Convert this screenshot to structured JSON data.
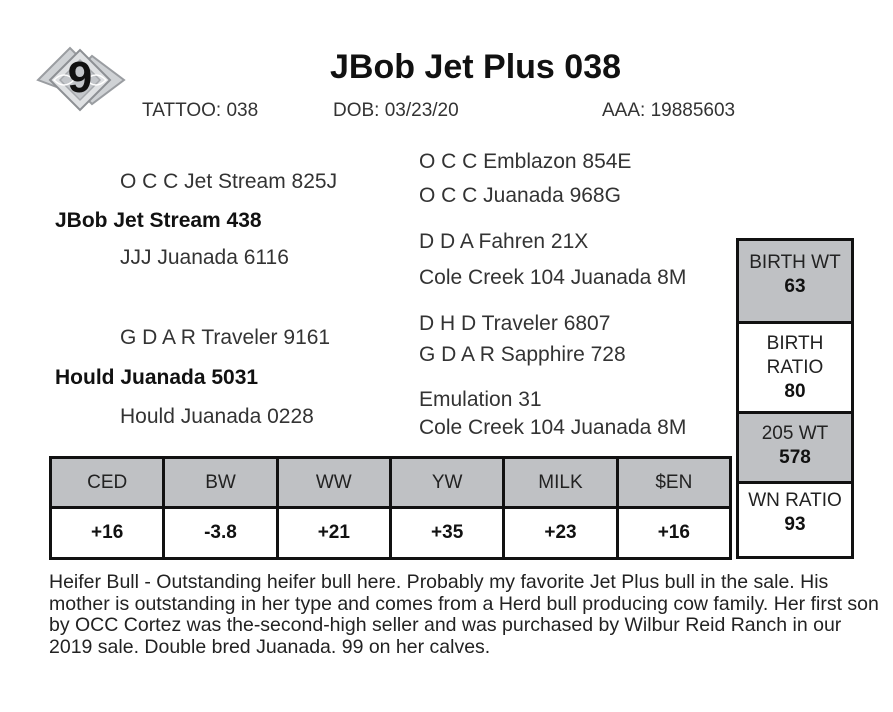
{
  "lot": {
    "number": "9"
  },
  "header": {
    "title": "JBob Jet Plus 038",
    "tattoo": "TATTOO: 038",
    "dob": "DOB:  03/23/20",
    "aaa": "AAA:  19885603"
  },
  "pedigree": {
    "sire": "JBob Jet Stream 438",
    "sire_sire": "O C C Jet Stream 825J",
    "sire_dam": "JJJ Juanada 6116",
    "sss": "O C C Emblazon 854E",
    "ssd": "O C C Juanada 968G",
    "sds": "D D A Fahren 21X",
    "sdd": "Cole Creek 104 Juanada 8M",
    "dam": "Hould Juanada 5031",
    "dam_sire": "G D A R Traveler 9161",
    "dam_dam": "Hould Juanada 0228",
    "dss": "D H D Traveler 6807",
    "dsd": "G D A R Sapphire 728",
    "dds": "Emulation 31",
    "ddd": "Cole Creek 104 Juanada 8M"
  },
  "epd": {
    "headers": [
      "CED",
      "BW",
      "WW",
      "YW",
      "MILK",
      "$EN"
    ],
    "values": [
      "+16",
      "-3.8",
      "+21",
      "+35",
      "+23",
      "+16"
    ]
  },
  "stats": {
    "birth_wt_label": "BIRTH WT",
    "birth_wt_value": "63",
    "birth_ratio_label1": "BIRTH",
    "birth_ratio_label2": "RATIO",
    "birth_ratio_value": "80",
    "wt205_label": "205 WT",
    "wt205_value": "578",
    "wn_ratio_label": "WN RATIO",
    "wn_ratio_value": "93"
  },
  "description": "Heifer Bull - Outstanding heifer bull here. Probably my favorite Jet Plus bull in the sale. His mother is outstanding in her type and comes from a Herd bull producing cow family. Her first son by OCC Cortez was the-second-high seller and was purchased by Wilbur Reid Ranch in our 2019 sale. Double bred Juanada. 99 on her calves."
}
